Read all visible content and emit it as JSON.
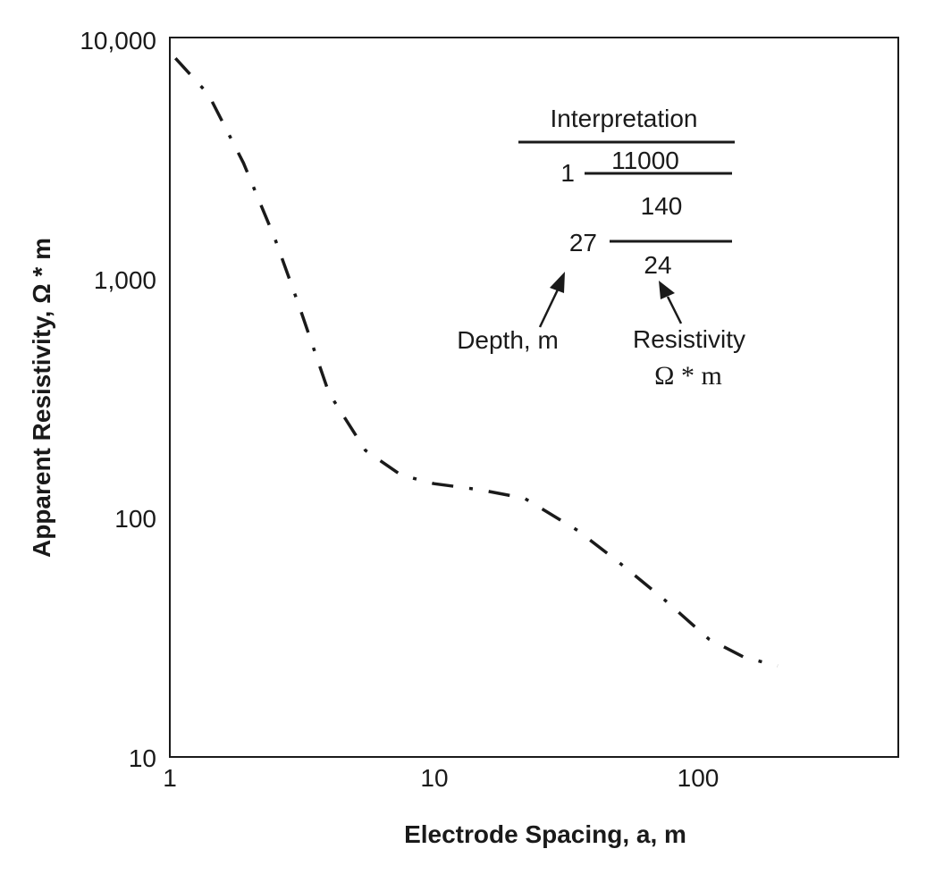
{
  "chart_data": {
    "type": "line",
    "xlabel": "Electrode Spacing, a, m",
    "ylabel": "Apparent Resistivity, Ω * m",
    "x_scale": "log",
    "y_scale": "log",
    "xlim": [
      1,
      600
    ],
    "ylim": [
      10,
      10000
    ],
    "grid": false,
    "x_ticks": [
      "1",
      "10",
      "100"
    ],
    "y_ticks": [
      "10",
      "100",
      "1,000",
      "10,000"
    ],
    "series": [
      {
        "style": "dash-dot",
        "color": "#1a1a1a",
        "x": [
          1.05,
          1.4,
          1.9,
          2.5,
          3.1,
          4.0,
          5.5,
          7.5,
          10,
          15,
          22,
          35,
          50,
          75,
          110,
          150,
          200
        ],
        "y": [
          8200,
          5800,
          3000,
          1450,
          750,
          330,
          190,
          150,
          138,
          130,
          120,
          88,
          65,
          45,
          31,
          26,
          24
        ]
      }
    ],
    "annotations": {
      "interpretation_title": "Interpretation",
      "layer1_resistivity": "11000",
      "layer1_depth": "1",
      "layer2_resistivity": "140",
      "layer2_depth": "27",
      "layer3_resistivity": "24",
      "depth_label": "Depth, m",
      "resistivity_label": "Resistivity",
      "resistivity_unit": "Ω * m"
    }
  }
}
